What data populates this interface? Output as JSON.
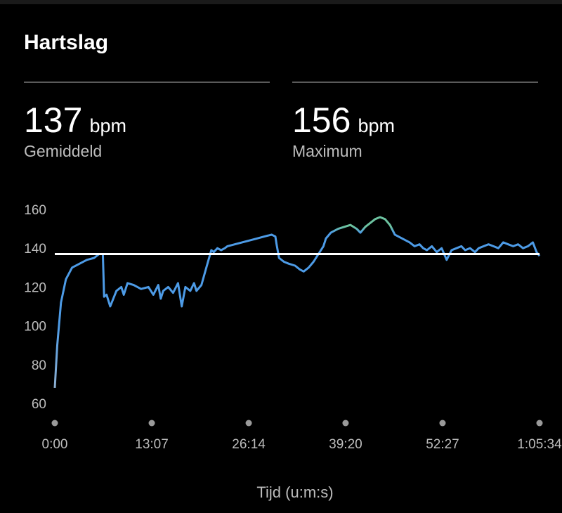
{
  "title": "Hartslag",
  "stats": {
    "average": {
      "value": "137",
      "unit": "bpm",
      "label": "Gemiddeld"
    },
    "max": {
      "value": "156",
      "unit": "bpm",
      "label": "Maximum"
    }
  },
  "colors": {
    "background": "#000000",
    "line": "#4d9be6",
    "line_high": "#6cc2a0",
    "line_start": "#a9b9c9",
    "average_line": "#ffffff",
    "text_secondary": "#bdbdbd"
  },
  "chart_data": {
    "type": "line",
    "title": "",
    "xlabel": "Tijd (u:m:s)",
    "ylabel": "",
    "ylim": [
      55,
      165
    ],
    "xlim": [
      0,
      3934
    ],
    "yticks": [
      60,
      80,
      100,
      120,
      140,
      160
    ],
    "xticks": [
      0,
      787,
      1574,
      2360,
      3147,
      3934
    ],
    "xtick_labels": [
      "0:00",
      "13:07",
      "26:14",
      "39:20",
      "52:27",
      "1:05:34"
    ],
    "average_value": 137,
    "grid": false,
    "series": [
      {
        "x": [
          0,
          20,
          50,
          90,
          140,
          200,
          260,
          320,
          360,
          390,
          400,
          420,
          450,
          500,
          540,
          560,
          590,
          640,
          700,
          760,
          800,
          840,
          860,
          880,
          920,
          960,
          1000,
          1030,
          1060,
          1100,
          1130,
          1150,
          1190,
          1230,
          1270,
          1290,
          1320,
          1350,
          1380,
          1400,
          1460,
          1520,
          1580,
          1640,
          1700,
          1760,
          1790,
          1800,
          1820,
          1860,
          1900,
          1950,
          1990,
          2020,
          2060,
          2100,
          2140,
          2180,
          2200,
          2240,
          2300,
          2350,
          2400,
          2450,
          2480,
          2520,
          2560,
          2600,
          2640,
          2680,
          2720,
          2760,
          2820,
          2880,
          2920,
          2960,
          2990,
          3020,
          3060,
          3100,
          3140,
          3180,
          3220,
          3260,
          3300,
          3330,
          3370,
          3410,
          3440,
          3480,
          3520,
          3560,
          3600,
          3640,
          3680,
          3720,
          3760,
          3800,
          3840,
          3880,
          3910,
          3934
        ],
        "values": [
          68,
          90,
          112,
          124,
          130,
          132,
          134,
          135,
          137,
          137,
          115,
          116,
          110,
          118,
          120,
          116,
          122,
          121,
          119,
          120,
          116,
          121,
          114,
          118,
          120,
          117,
          122,
          110,
          120,
          118,
          122,
          118,
          121,
          130,
          139,
          138,
          140,
          139,
          140,
          141,
          142,
          143,
          144,
          145,
          146,
          147,
          146,
          142,
          135,
          133,
          132,
          131,
          129,
          128,
          130,
          133,
          137,
          141,
          145,
          148,
          150,
          151,
          152,
          150,
          148,
          151,
          153,
          155,
          156,
          155,
          152,
          147,
          145,
          143,
          141,
          142,
          140,
          139,
          141,
          138,
          140,
          134,
          139,
          140,
          141,
          139,
          140,
          138,
          140,
          141,
          142,
          141,
          140,
          143,
          142,
          141,
          142,
          140,
          141,
          143,
          138,
          136
        ]
      }
    ]
  }
}
